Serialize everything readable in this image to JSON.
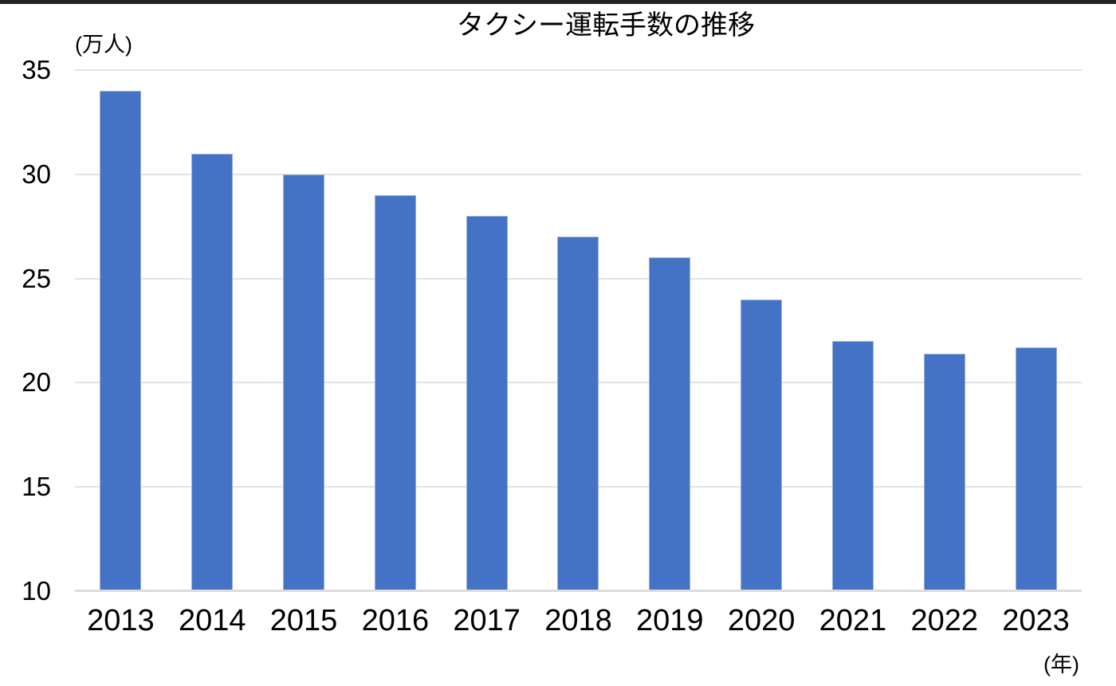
{
  "page": {
    "top_border_color": "#222222",
    "background_color": "#ffffff"
  },
  "chart_data": {
    "type": "bar",
    "title": "タクシー運転手数の推移",
    "y_unit_label": "(万人)",
    "x_unit_label": "(年)",
    "categories": [
      "2013",
      "2014",
      "2015",
      "2016",
      "2017",
      "2018",
      "2019",
      "2020",
      "2021",
      "2022",
      "2023"
    ],
    "values": [
      34,
      31,
      30,
      29,
      28,
      27,
      26,
      24,
      22,
      21.4,
      21.7
    ],
    "yticks": [
      35,
      30,
      25,
      20,
      15,
      10
    ],
    "ylim": [
      10,
      35
    ],
    "xlabel": "",
    "ylabel": "",
    "legend": "none",
    "grid": "horizontal-only",
    "bar_color": "#4472C4",
    "gridline_color": "#e2e2e2",
    "axis_line_color": "#dcdcdc",
    "text_color": "#000000"
  }
}
